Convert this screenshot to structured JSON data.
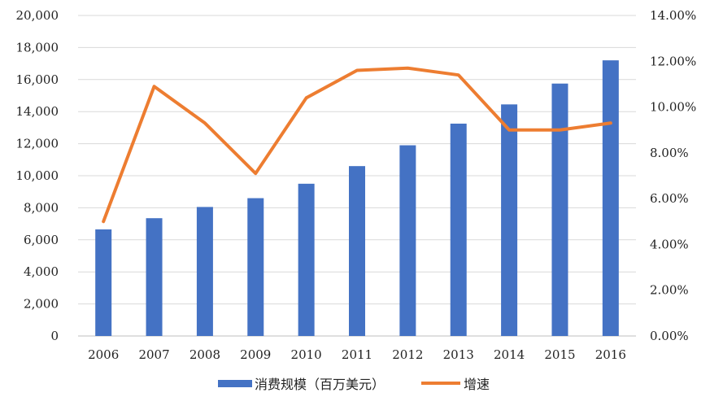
{
  "chart_data": {
    "type": "bar+line",
    "categories": [
      "2006",
      "2007",
      "2008",
      "2009",
      "2010",
      "2011",
      "2012",
      "2013",
      "2014",
      "2015",
      "2016"
    ],
    "series": [
      {
        "name": "消费规模（百万美元）",
        "type": "bar",
        "axis": "left",
        "color": "#4472C4",
        "values": [
          6650,
          7350,
          8050,
          8600,
          9500,
          10600,
          11900,
          13250,
          14450,
          15750,
          17200
        ]
      },
      {
        "name": "增速",
        "type": "line",
        "axis": "right",
        "color": "#ED7D31",
        "values": [
          5.0,
          10.9,
          9.3,
          7.1,
          10.4,
          11.6,
          11.7,
          11.4,
          9.0,
          9.0,
          9.3
        ]
      }
    ],
    "left_axis": {
      "min": 0,
      "max": 20000,
      "ticks": [
        0,
        2000,
        4000,
        6000,
        8000,
        10000,
        12000,
        14000,
        16000,
        18000,
        20000
      ],
      "tick_labels": [
        "0",
        "2,000",
        "4,000",
        "6,000",
        "8,000",
        "10,000",
        "12,000",
        "14,000",
        "16,000",
        "18,000",
        "20,000"
      ]
    },
    "right_axis": {
      "min": 0,
      "max": 14,
      "ticks": [
        0,
        2,
        4,
        6,
        8,
        10,
        12,
        14
      ],
      "tick_labels": [
        "0.00%",
        "2.00%",
        "4.00%",
        "6.00%",
        "8.00%",
        "10.00%",
        "12.00%",
        "14.00%"
      ]
    },
    "grid": true,
    "legend": "bottom-center",
    "title": "",
    "xlabel": "",
    "ylabel": ""
  }
}
